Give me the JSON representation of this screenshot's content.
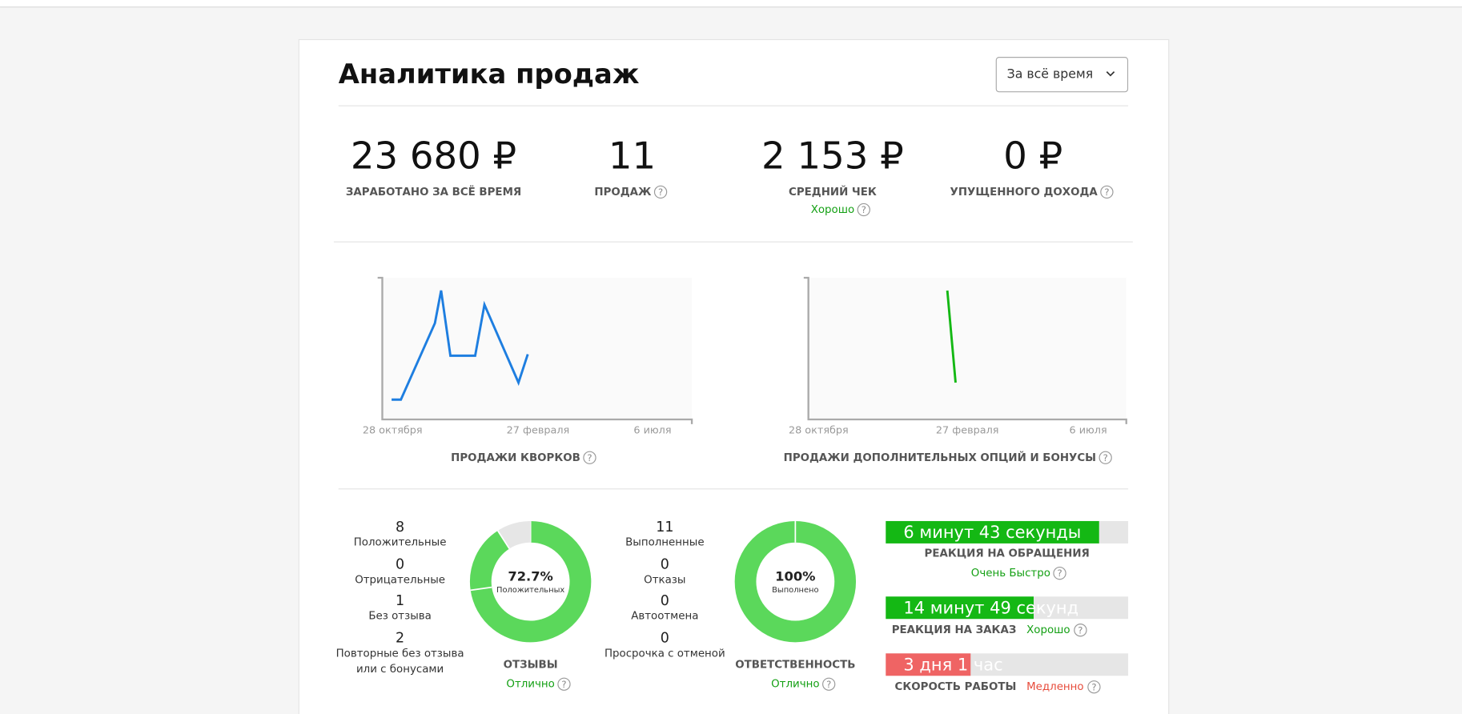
{
  "header": {
    "title": "Аналитика продаж",
    "period_select": "За всё время"
  },
  "help_icon": "?",
  "stats": [
    {
      "value": "23 680 ₽",
      "label": "ЗАРАБОТАНО ЗА ВСЁ ВРЕМЯ"
    },
    {
      "value": "11",
      "label": "ПРОДАЖ",
      "help": true
    },
    {
      "value": "2 153 ₽",
      "label": "СРЕДНИЙ ЧЕК",
      "rating": "Хорошо"
    },
    {
      "value": "0 ₽",
      "label": "УПУЩЕННОГО ДОХОДА",
      "help": true
    }
  ],
  "charts": [
    {
      "title": "ПРОДАЖИ КВОРКОВ",
      "color": "#1e7ee0",
      "xlim": [
        0,
        100
      ],
      "ylim": [
        0,
        100
      ],
      "xticks": [
        {
          "value": 3.3,
          "label": "28 октября"
        },
        {
          "value": 50.3,
          "label": "27 февраля"
        },
        {
          "value": 87.3,
          "label": "6 июля"
        }
      ],
      "x": [
        3,
        6,
        17,
        19,
        22,
        30,
        33,
        44,
        47
      ],
      "values": [
        14,
        14,
        68,
        91,
        45,
        45,
        81,
        26,
        46
      ]
    },
    {
      "title": "ПРОДАЖИ ДОПОЛНИТЕЛЬНЫХ ОПЦИЙ И БОНУСЫ",
      "color": "#14b814",
      "xlim": [
        0,
        100
      ],
      "ylim": [
        0,
        100
      ],
      "xticks": [
        {
          "value": 3.2,
          "label": "28 октября"
        },
        {
          "value": 50,
          "label": "27 февраля"
        },
        {
          "value": 88,
          "label": "6 июля"
        }
      ],
      "x": [
        43.7,
        46.3
      ],
      "values": [
        91,
        26
      ]
    }
  ],
  "reviews": {
    "items": [
      {
        "count": 8,
        "label": "Положительные",
        "color": "#5bd85b"
      },
      {
        "count": 0,
        "label": "Отрицательные",
        "color": "#e74c3c"
      },
      {
        "count": 1,
        "label": "Без отзыва",
        "color": "#e6e6e6"
      },
      {
        "count": 2,
        "label": "Повторные без отзыва",
        "label2": "или с бонусами",
        "color": "#5bd85b"
      }
    ],
    "donut_value": "72.7%",
    "donut_label": "Положительных",
    "title": "ОТЗЫВЫ",
    "rating": "Отлично"
  },
  "responsibility": {
    "items": [
      {
        "count": 11,
        "label": "Выполненные",
        "color": "#5bd85b"
      },
      {
        "count": 0,
        "label": "Отказы",
        "color": "#e74c3c"
      },
      {
        "count": 0,
        "label": "Автоотмена",
        "color": "#e6e6e6"
      },
      {
        "count": 0,
        "label": "Просрочка с отменой",
        "color": "#f0a040"
      }
    ],
    "donut_value": "100%",
    "donut_label": "Выполнено",
    "title": "ОТВЕТСТВЕННОСТЬ",
    "rating": "Отлично"
  },
  "speed": [
    {
      "bar_text": "6 минут 43 секунды",
      "fill": 88,
      "color": "#14b814",
      "label": "РЕАКЦИЯ НА ОБРАЩЕНИЯ",
      "rating": "Очень Быстро",
      "rating_color": "#14a014"
    },
    {
      "bar_text": "14 минут 49 секунд",
      "fill": 61,
      "color": "#14b814",
      "label": "РЕАКЦИЯ НА ЗАКАЗ",
      "rating": "Хорошо",
      "rating_color": "#14a014"
    },
    {
      "bar_text": "3 дня 1 час",
      "fill": 35,
      "color": "#ef6464",
      "label": "СКОРОСТЬ РАБОТЫ",
      "rating": "Медленно",
      "rating_color": "#e74c3c"
    }
  ]
}
